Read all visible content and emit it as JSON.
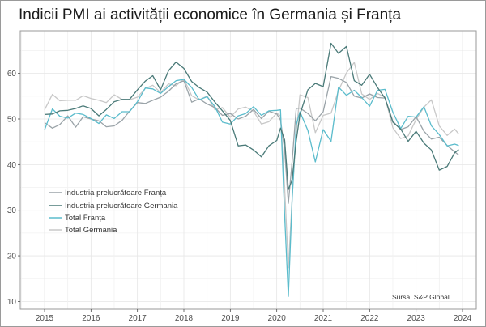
{
  "chart_data": {
    "type": "line",
    "title": "Indicii PMI ai activității economice în Germania și Franța",
    "xlabel": "",
    "ylabel": "",
    "x_ticks": [
      "2015",
      "2016",
      "2017",
      "2018",
      "2019",
      "2020",
      "2021",
      "2022",
      "2023",
      "2024"
    ],
    "y_ticks": [
      10,
      20,
      30,
      40,
      50,
      60
    ],
    "xlim": [
      2014.5,
      2024.3
    ],
    "ylim": [
      8,
      68
    ],
    "grid": true,
    "legend_position": "left-middle",
    "source": "Sursa: S&P Global",
    "x": [
      2015.0,
      2015.17,
      2015.33,
      2015.5,
      2015.67,
      2015.83,
      2016.0,
      2016.17,
      2016.33,
      2016.5,
      2016.67,
      2016.83,
      2017.0,
      2017.17,
      2017.33,
      2017.5,
      2017.67,
      2017.83,
      2018.0,
      2018.17,
      2018.33,
      2018.5,
      2018.67,
      2018.83,
      2019.0,
      2019.17,
      2019.33,
      2019.5,
      2019.67,
      2019.83,
      2020.0,
      2020.08,
      2020.17,
      2020.25,
      2020.33,
      2020.42,
      2020.5,
      2020.67,
      2020.83,
      2021.0,
      2021.17,
      2021.33,
      2021.5,
      2021.67,
      2021.83,
      2022.0,
      2022.17,
      2022.33,
      2022.5,
      2022.67,
      2022.83,
      2023.0,
      2023.17,
      2023.33,
      2023.5,
      2023.67,
      2023.83,
      2023.92
    ],
    "series": [
      {
        "name": "Industria prelucrătoare Franța",
        "color": "#9aa3a8",
        "values": [
          49.2,
          48.0,
          48.8,
          50.7,
          48.2,
          50.5,
          50.0,
          49.6,
          48.3,
          48.5,
          49.7,
          51.7,
          53.6,
          53.4,
          54.1,
          54.8,
          56.1,
          57.7,
          58.4,
          53.7,
          54.4,
          53.3,
          52.5,
          50.8,
          51.2,
          50.0,
          50.6,
          52.1,
          50.1,
          51.7,
          51.1,
          49.8,
          43.2,
          31.5,
          40.6,
          52.3,
          52.4,
          51.2,
          49.6,
          51.6,
          59.3,
          58.9,
          58.0,
          55.0,
          54.6,
          55.5,
          54.7,
          54.6,
          49.5,
          47.7,
          48.3,
          50.5,
          47.3,
          45.6,
          46.0,
          44.2,
          42.8,
          42.1
        ]
      },
      {
        "name": "Industria prelucrătoare Germania",
        "color": "#4a7a78",
        "values": [
          51.0,
          51.1,
          51.8,
          51.9,
          52.3,
          52.9,
          52.3,
          50.7,
          52.1,
          53.8,
          54.3,
          54.3,
          56.4,
          58.3,
          59.5,
          56.4,
          60.6,
          62.5,
          61.1,
          58.2,
          56.9,
          55.9,
          53.7,
          51.8,
          49.7,
          44.1,
          44.3,
          43.2,
          41.7,
          44.1,
          45.3,
          48.0,
          45.4,
          34.5,
          36.6,
          45.2,
          51.0,
          56.4,
          57.8,
          57.1,
          66.6,
          64.4,
          65.9,
          58.4,
          57.4,
          59.8,
          56.9,
          54.6,
          49.3,
          47.8,
          45.1,
          47.3,
          44.7,
          43.2,
          38.8,
          39.6,
          42.6,
          43.3
        ]
      },
      {
        "name": "Total Franța",
        "color": "#5bbccc",
        "values": [
          47.6,
          52.2,
          50.6,
          50.2,
          51.3,
          51.0,
          50.1,
          49.0,
          50.9,
          50.1,
          51.6,
          51.6,
          53.8,
          56.8,
          56.6,
          55.6,
          57.1,
          58.4,
          58.7,
          56.9,
          54.2,
          54.9,
          52.7,
          49.3,
          48.9,
          50.7,
          51.2,
          52.7,
          50.8,
          51.8,
          51.9,
          52.0,
          28.9,
          11.1,
          32.1,
          48.7,
          51.6,
          47.5,
          40.6,
          47.7,
          45.1,
          57.0,
          55.2,
          56.3,
          54.7,
          52.8,
          56.3,
          56.5,
          51.5,
          47.9,
          50.6,
          50.4,
          52.7,
          48.5,
          46.6,
          44.1,
          44.5,
          44.2
        ]
      },
      {
        "name": "Total Germania",
        "color": "#c8c8c8",
        "values": [
          52.0,
          55.4,
          54.0,
          54.1,
          54.1,
          55.1,
          54.5,
          54.1,
          53.6,
          55.3,
          54.3,
          54.2,
          54.8,
          56.7,
          57.4,
          55.8,
          57.7,
          57.3,
          58.8,
          55.1,
          54.2,
          55.0,
          52.0,
          52.5,
          50.4,
          52.2,
          52.6,
          51.7,
          48.9,
          49.4,
          51.3,
          50.7,
          35.0,
          17.4,
          32.3,
          47.0,
          55.3,
          54.7,
          47.0,
          50.8,
          51.3,
          56.2,
          60.1,
          62.4,
          55.5,
          54.3,
          55.6,
          54.8,
          48.1,
          45.7,
          46.3,
          49.9,
          52.6,
          54.2,
          48.5,
          46.4,
          47.8,
          46.7
        ]
      }
    ]
  },
  "legend": {
    "items": [
      {
        "label": "Industria prelucrătoare Franța",
        "color": "#9aa3a8"
      },
      {
        "label": "Industria prelucrătoare Germania",
        "color": "#4a7a78"
      },
      {
        "label": "Total Franța",
        "color": "#5bbccc"
      },
      {
        "label": "Total Germania",
        "color": "#c8c8c8"
      }
    ]
  }
}
